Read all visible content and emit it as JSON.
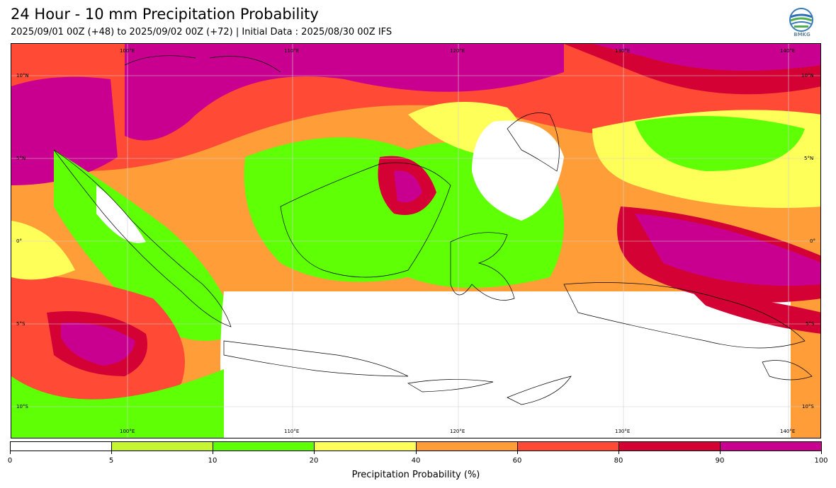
{
  "header": {
    "title": "24 Hour - 10 mm Precipitation Probability",
    "subtitle": "2025/09/01 00Z (+48) to 2025/09/02 00Z (+72) | Initial Data : 2025/08/30 00Z IFS",
    "logo_text": "BMKG"
  },
  "map": {
    "region": "Indonesia maritime continent",
    "lon_labels_top": [
      "100°E",
      "110°E",
      "120°E",
      "130°E",
      "140°E"
    ],
    "lon_labels_bottom": [
      "100°E",
      "110°E",
      "120°E",
      "130°E",
      "140°E"
    ],
    "lat_labels_left": [
      "10°N",
      "5°N",
      "0°",
      "5°S",
      "10°S"
    ],
    "lat_labels_right": [
      "10°N",
      "5°N",
      "0°",
      "5°S",
      "10°S"
    ],
    "gridlines": true
  },
  "colorbar": {
    "ticks": [
      "0",
      "5",
      "10",
      "20",
      "40",
      "60",
      "80",
      "90",
      "100"
    ],
    "colors": [
      "#ffffff",
      "#c6f531",
      "#5fff05",
      "#ffff5a",
      "#ff9d39",
      "#ff4a35",
      "#d30134",
      "#c9008f"
    ],
    "label": "Precipitation Probability (%)"
  }
}
